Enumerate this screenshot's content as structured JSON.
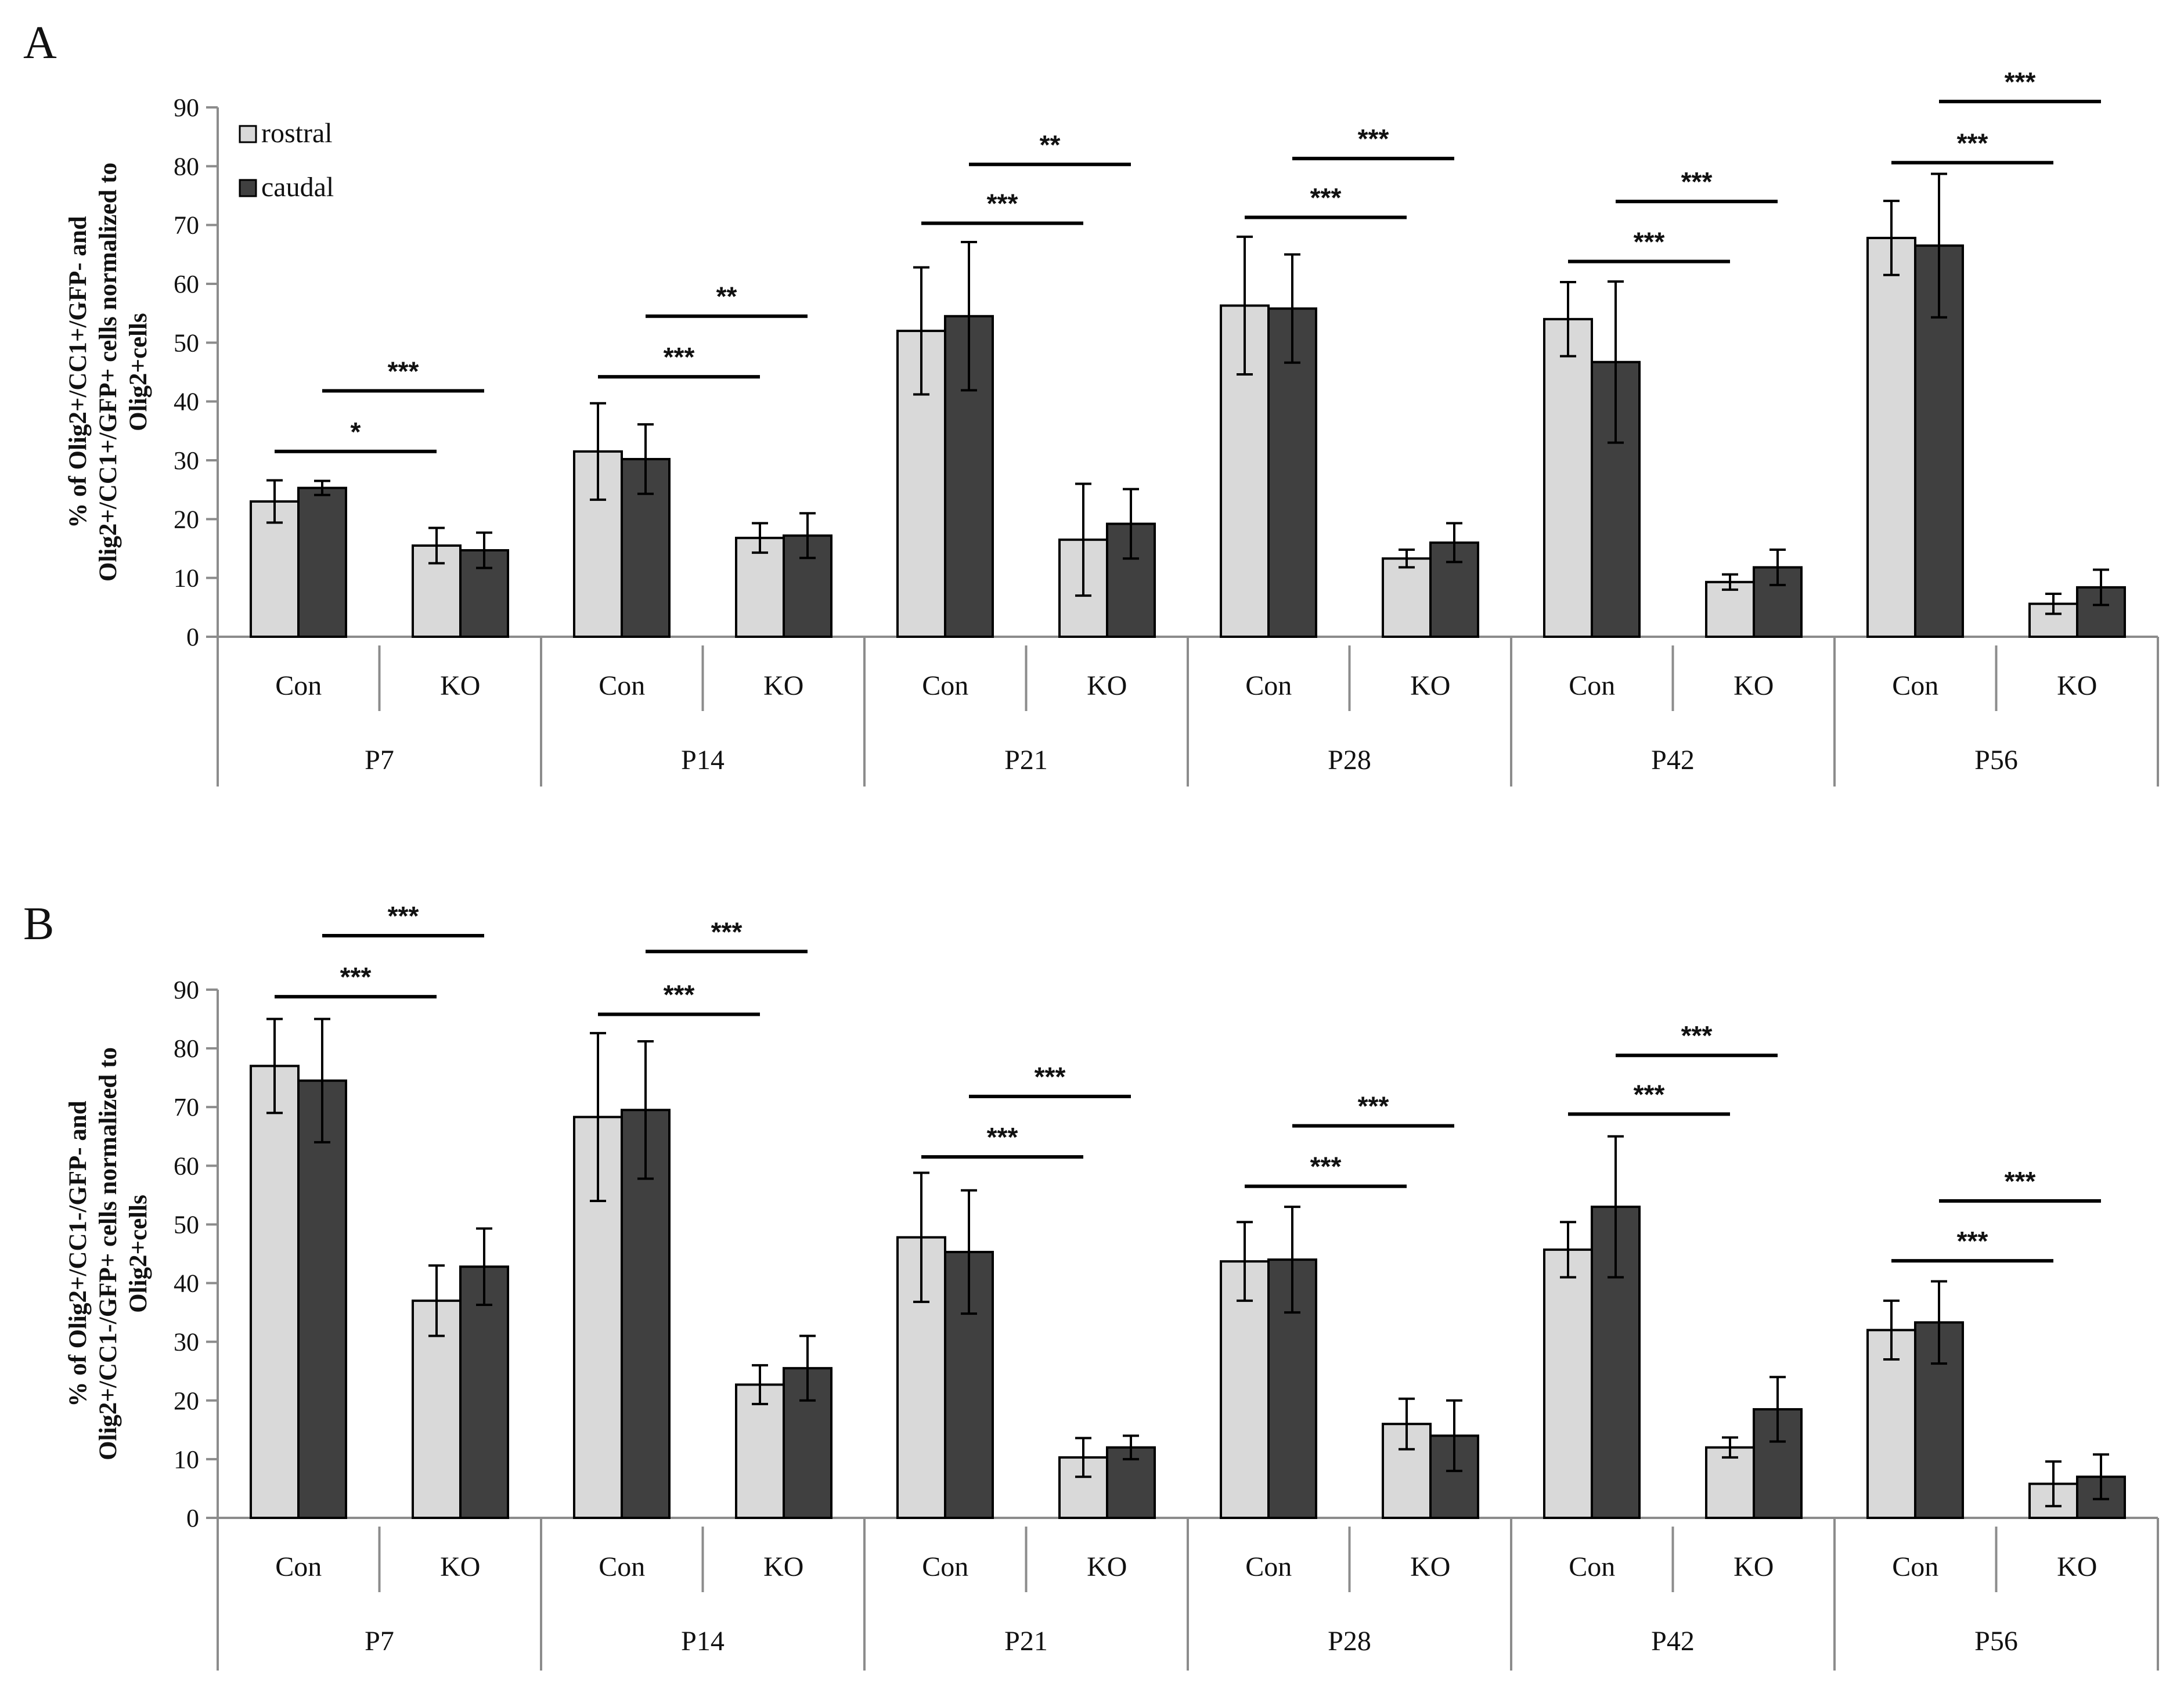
{
  "figure": {
    "legend": [
      {
        "name": "rostral",
        "color": "#d9d9d9"
      },
      {
        "name": "caudal",
        "color": "#404040"
      }
    ]
  },
  "chart_data": [
    {
      "type": "bar",
      "panel": "A",
      "ylabel": [
        "% of Olig2+/CC1+/GFP- and",
        "Olig2+/CC1+/GFP+ cells normalized to",
        "Olig2+cells"
      ],
      "ylim": [
        0,
        90
      ],
      "yticks": [
        0,
        10,
        20,
        30,
        40,
        50,
        60,
        70,
        80,
        90
      ],
      "groups": [
        "P7",
        "P14",
        "P21",
        "P28",
        "P42",
        "P56"
      ],
      "subgroups": [
        "Con",
        "KO"
      ],
      "series": [
        {
          "name": "rostral",
          "color": "#d9d9d9",
          "values": [
            [
              23,
              15.5
            ],
            [
              31.5,
              16.8
            ],
            [
              52,
              16.5
            ],
            [
              56.3,
              13.3
            ],
            [
              54,
              9.3
            ],
            [
              67.8,
              5.6
            ]
          ],
          "errors": [
            [
              3.6,
              3
            ],
            [
              8.2,
              2.5
            ],
            [
              10.8,
              9.5
            ],
            [
              11.7,
              1.5
            ],
            [
              6.3,
              1.3
            ],
            [
              6.3,
              1.7
            ]
          ]
        },
        {
          "name": "caudal",
          "color": "#404040",
          "values": [
            [
              25.3,
              14.7
            ],
            [
              30.2,
              17.2
            ],
            [
              54.5,
              19.2
            ],
            [
              55.8,
              16
            ],
            [
              46.7,
              11.8
            ],
            [
              66.5,
              8.4
            ]
          ],
          "errors": [
            [
              1.2,
              3
            ],
            [
              5.9,
              3.8
            ],
            [
              12.6,
              5.9
            ],
            [
              9.2,
              3.3
            ],
            [
              13.7,
              3
            ],
            [
              12.2,
              3
            ]
          ]
        }
      ],
      "significance": [
        {
          "group": 0,
          "label": "*",
          "y": 31.5,
          "from": "Con-rostral",
          "to": "KO-rostral"
        },
        {
          "group": 0,
          "label": "***",
          "y": 41.8,
          "from": "Con-caudal",
          "to": "KO-caudal"
        },
        {
          "group": 1,
          "label": "***",
          "y": 44.2,
          "from": "Con-rostral",
          "to": "KO-rostral"
        },
        {
          "group": 1,
          "label": "**",
          "y": 54.5,
          "from": "Con-caudal",
          "to": "KO-caudal"
        },
        {
          "group": 2,
          "label": "***",
          "y": 70.3,
          "from": "Con-rostral",
          "to": "KO-rostral"
        },
        {
          "group": 2,
          "label": "**",
          "y": 80.3,
          "from": "Con-caudal",
          "to": "KO-caudal"
        },
        {
          "group": 3,
          "label": "***",
          "y": 71.3,
          "from": "Con-rostral",
          "to": "KO-rostral"
        },
        {
          "group": 3,
          "label": "***",
          "y": 81.3,
          "from": "Con-caudal",
          "to": "KO-caudal"
        },
        {
          "group": 4,
          "label": "***",
          "y": 63.8,
          "from": "Con-rostral",
          "to": "KO-rostral"
        },
        {
          "group": 4,
          "label": "***",
          "y": 74.0,
          "from": "Con-caudal",
          "to": "KO-caudal"
        },
        {
          "group": 5,
          "label": "***",
          "y": 80.6,
          "from": "Con-rostral",
          "to": "KO-rostral"
        },
        {
          "group": 5,
          "label": "***",
          "y": 91.0,
          "from": "Con-caudal",
          "to": "KO-caudal"
        }
      ]
    },
    {
      "type": "bar",
      "panel": "B",
      "ylabel": [
        "% of Olig2+/CC1-/GFP- and",
        "Olig2+/CC1-/GFP+ cells normalized to",
        "Olig2+cells"
      ],
      "ylim": [
        0,
        90
      ],
      "yticks": [
        0,
        10,
        20,
        30,
        40,
        50,
        60,
        70,
        80,
        90
      ],
      "groups": [
        "P7",
        "P14",
        "P21",
        "P28",
        "P42",
        "P56"
      ],
      "subgroups": [
        "Con",
        "KO"
      ],
      "series": [
        {
          "name": "rostral",
          "color": "#d9d9d9",
          "values": [
            [
              77,
              37
            ],
            [
              68.3,
              22.7
            ],
            [
              47.8,
              10.3
            ],
            [
              43.7,
              16
            ],
            [
              45.7,
              12
            ],
            [
              32,
              5.8
            ]
          ],
          "errors": [
            [
              8,
              6
            ],
            [
              14.3,
              3.3
            ],
            [
              11,
              3.3
            ],
            [
              6.7,
              4.3
            ],
            [
              4.7,
              1.7
            ],
            [
              5,
              3.8
            ]
          ]
        },
        {
          "name": "caudal",
          "color": "#404040",
          "values": [
            [
              74.5,
              42.8
            ],
            [
              69.5,
              25.5
            ],
            [
              45.3,
              12
            ],
            [
              44,
              14
            ],
            [
              53,
              18.5
            ],
            [
              33.3,
              7
            ]
          ],
          "errors": [
            [
              10.5,
              6.5
            ],
            [
              11.7,
              5.5
            ],
            [
              10.5,
              2
            ],
            [
              9,
              6
            ],
            [
              12,
              5.5
            ],
            [
              7,
              3.8
            ]
          ]
        }
      ],
      "significance": [
        {
          "group": 0,
          "label": "***",
          "y": 88.8,
          "from": "Con-rostral",
          "to": "KO-rostral"
        },
        {
          "group": 0,
          "label": "***",
          "y": 99.2,
          "from": "Con-caudal",
          "to": "KO-caudal"
        },
        {
          "group": 1,
          "label": "***",
          "y": 85.8,
          "from": "Con-rostral",
          "to": "KO-rostral"
        },
        {
          "group": 1,
          "label": "***",
          "y": 96.5,
          "from": "Con-caudal",
          "to": "KO-caudal"
        },
        {
          "group": 2,
          "label": "***",
          "y": 61.5,
          "from": "Con-rostral",
          "to": "KO-rostral"
        },
        {
          "group": 2,
          "label": "***",
          "y": 71.8,
          "from": "Con-caudal",
          "to": "KO-caudal"
        },
        {
          "group": 3,
          "label": "***",
          "y": 56.5,
          "from": "Con-rostral",
          "to": "KO-rostral"
        },
        {
          "group": 3,
          "label": "***",
          "y": 66.8,
          "from": "Con-caudal",
          "to": "KO-caudal"
        },
        {
          "group": 4,
          "label": "***",
          "y": 68.8,
          "from": "Con-rostral",
          "to": "KO-rostral"
        },
        {
          "group": 4,
          "label": "***",
          "y": 78.8,
          "from": "Con-caudal",
          "to": "KO-caudal"
        },
        {
          "group": 5,
          "label": "***",
          "y": 43.8,
          "from": "Con-rostral",
          "to": "KO-rostral"
        },
        {
          "group": 5,
          "label": "***",
          "y": 54.0,
          "from": "Con-caudal",
          "to": "KO-caudal"
        }
      ]
    }
  ]
}
